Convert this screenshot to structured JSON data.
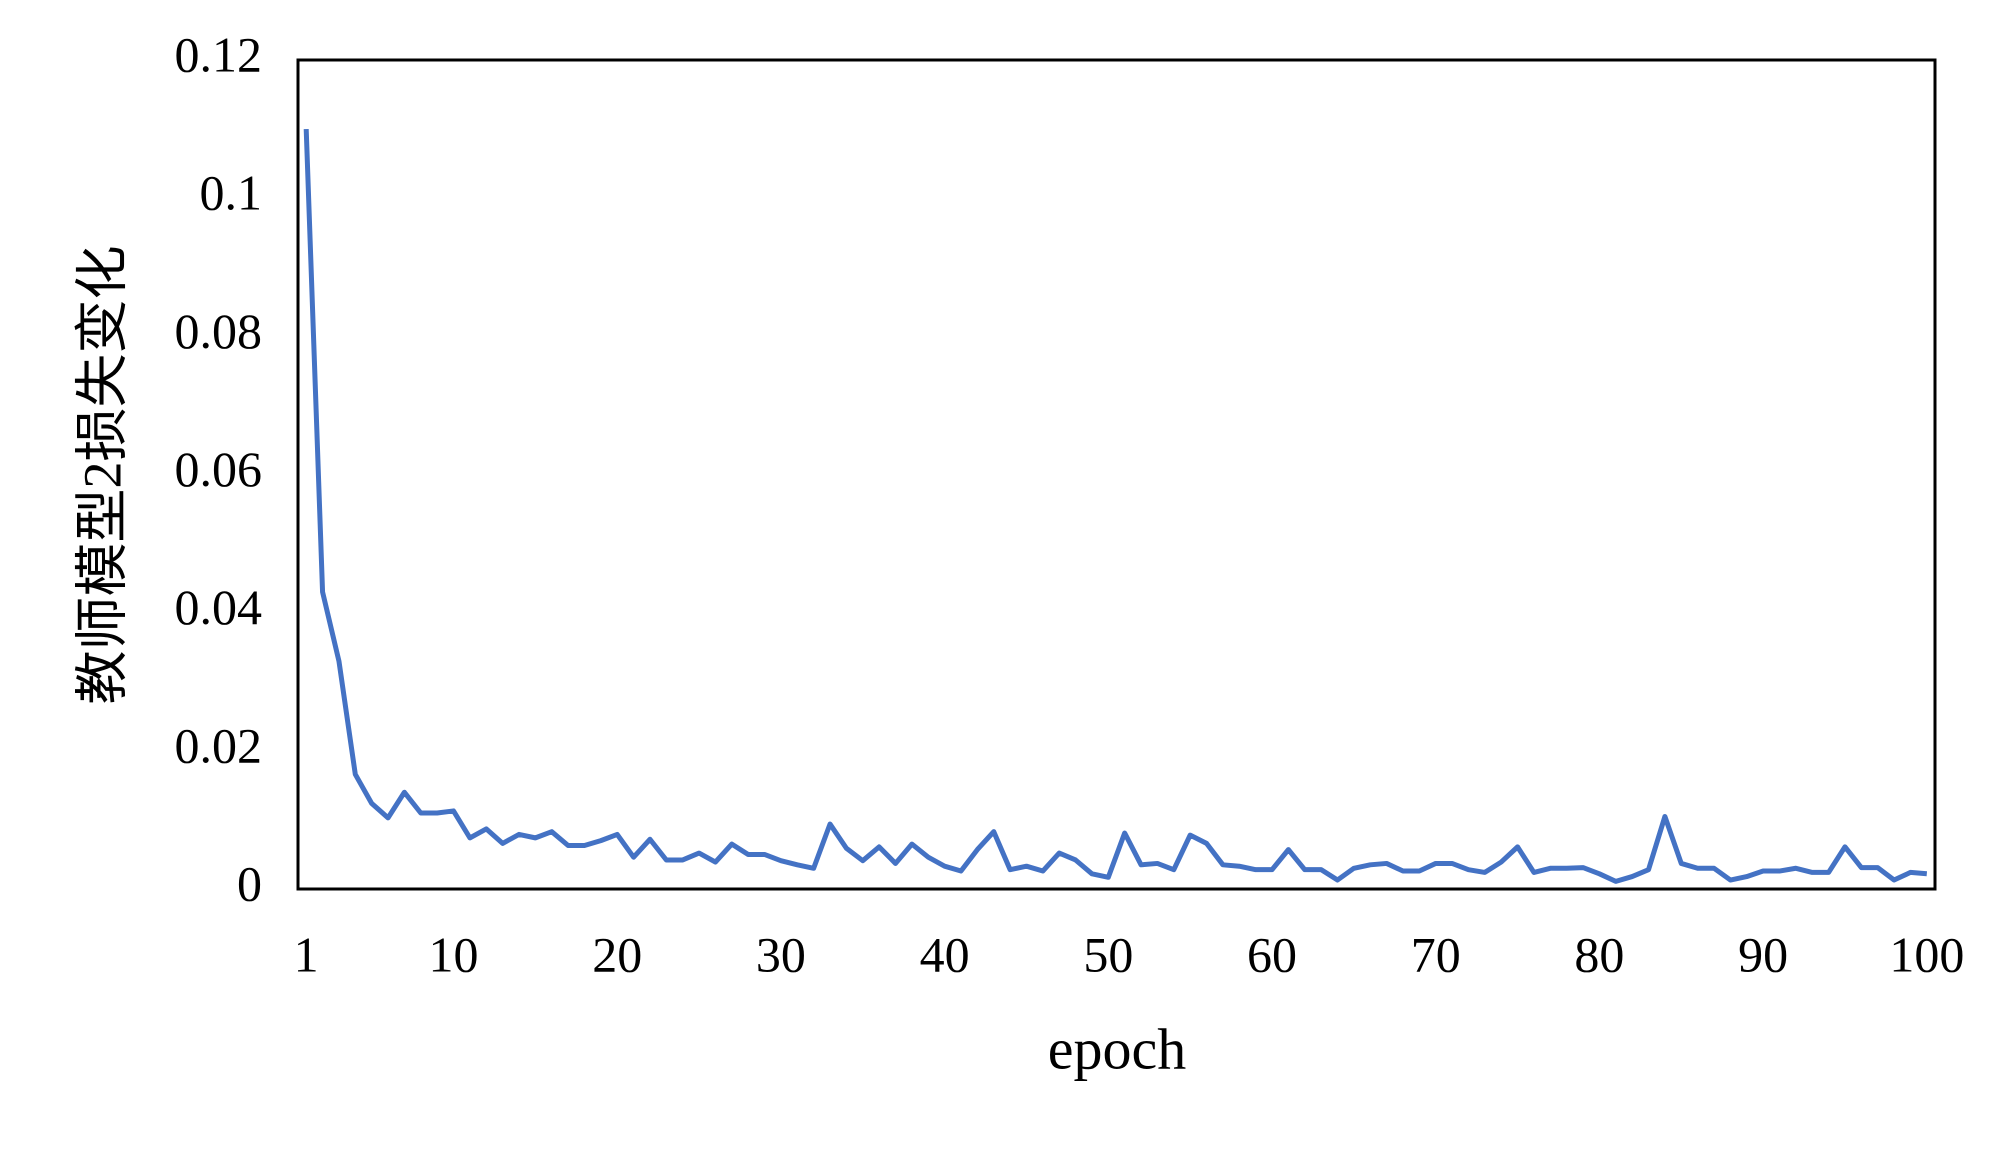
{
  "chart_data": {
    "type": "line",
    "x_label": "epoch",
    "y_label": "教师模型2损失变化",
    "x": [
      1,
      2,
      3,
      4,
      5,
      6,
      7,
      8,
      9,
      10,
      11,
      12,
      13,
      14,
      15,
      16,
      17,
      18,
      19,
      20,
      21,
      22,
      23,
      24,
      25,
      26,
      27,
      28,
      29,
      30,
      31,
      32,
      33,
      34,
      35,
      36,
      37,
      38,
      39,
      40,
      41,
      42,
      43,
      44,
      45,
      46,
      47,
      48,
      49,
      50,
      51,
      52,
      53,
      54,
      55,
      56,
      57,
      58,
      59,
      60,
      61,
      62,
      63,
      64,
      65,
      66,
      67,
      68,
      69,
      70,
      71,
      72,
      73,
      74,
      75,
      76,
      77,
      78,
      79,
      80,
      81,
      82,
      83,
      84,
      85,
      86,
      87,
      88,
      89,
      90,
      91,
      92,
      93,
      94,
      95,
      96,
      97,
      98,
      99,
      100
    ],
    "series": [
      {
        "color": "#4472c4",
        "values": [
          0.11,
          0.043,
          0.033,
          0.0166,
          0.0124,
          0.0103,
          0.014,
          0.011,
          0.011,
          0.0113,
          0.0074,
          0.0087,
          0.0066,
          0.0079,
          0.0074,
          0.0083,
          0.0063,
          0.0063,
          0.007,
          0.0079,
          0.0046,
          0.0072,
          0.0042,
          0.0042,
          0.0052,
          0.0039,
          0.0065,
          0.005,
          0.005,
          0.0041,
          0.0035,
          0.003,
          0.0094,
          0.0059,
          0.0041,
          0.0061,
          0.0037,
          0.0065,
          0.0046,
          0.0033,
          0.0026,
          0.0057,
          0.0083,
          0.0028,
          0.0033,
          0.0026,
          0.0052,
          0.0042,
          0.0022,
          0.0017,
          0.0081,
          0.0035,
          0.0037,
          0.0028,
          0.0078,
          0.0066,
          0.0035,
          0.0033,
          0.0028,
          0.0028,
          0.0057,
          0.0028,
          0.0028,
          0.0013,
          0.003,
          0.0035,
          0.0037,
          0.0026,
          0.0026,
          0.0037,
          0.0037,
          0.0028,
          0.0024,
          0.0039,
          0.0061,
          0.0024,
          0.003,
          0.003,
          0.0031,
          0.0022,
          0.0011,
          0.0018,
          0.0028,
          0.0105,
          0.0037,
          0.003,
          0.003,
          0.0013,
          0.0018,
          0.0026,
          0.0026,
          0.003,
          0.0024,
          0.0024,
          0.0061,
          0.0031,
          0.0031,
          0.0013,
          0.0024,
          0.0022
        ]
      }
    ],
    "xlim": [
      0.5,
      100.5
    ],
    "xticks": [
      1,
      10,
      20,
      30,
      40,
      50,
      60,
      70,
      80,
      90,
      100
    ],
    "ylim": [
      0,
      0.12
    ],
    "yticks": [
      0,
      0.02,
      0.04,
      0.06,
      0.08,
      0.1,
      0.12
    ]
  }
}
